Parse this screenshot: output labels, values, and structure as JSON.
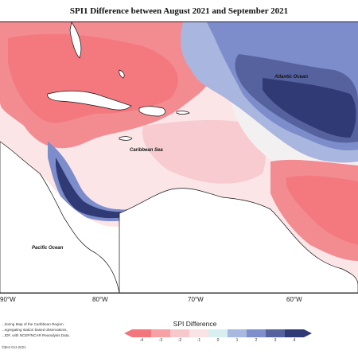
{
  "title": "SPI1 Difference between August 2021 and September 2021",
  "places": {
    "atlantic": "Atlantic Ocean",
    "caribbean": "Caribbean Sea",
    "pacific": "Pacific Ocean"
  },
  "longitude_ticks": [
    "90°W",
    "80°W",
    "70°W",
    "60°W"
  ],
  "footer_lines": [
    "...itoring Map of the Caribbean Region.",
    "...egregating station based observations,",
    "...IDF, with NCEP/NCAR Reanalysis Data."
  ],
  "credit": "©BHI Oct-2021",
  "legend": {
    "title": "SPI Difference",
    "ticks": [
      "-4",
      "-3",
      "-2",
      "-1",
      "0",
      "1",
      "2",
      "3",
      "4"
    ],
    "colors": [
      "#f2777d",
      "#f5a1a6",
      "#f7c8cb",
      "#fae3e5",
      "#d9eef0",
      "#a8b8e0",
      "#7e8fcc",
      "#55629e",
      "#303b75"
    ]
  }
}
